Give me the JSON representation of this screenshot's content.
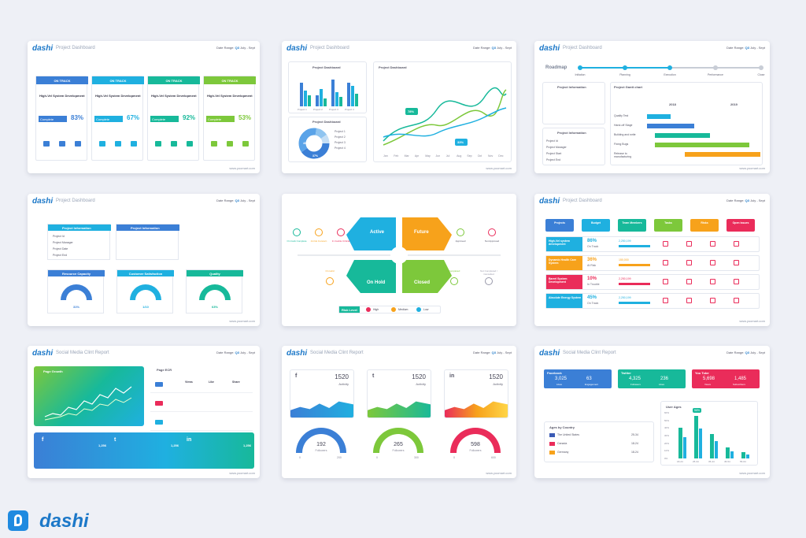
{
  "brand": "dashi",
  "url": "www.yoomart.com",
  "range_label": "Date Range",
  "range_q": "Q3",
  "range_months": "July - Sept",
  "slides": {
    "s1": {
      "title": "Project Dashboard",
      "cols": [
        {
          "status": "ON TRACK",
          "head": "High-Vel System Development",
          "pct": "83%",
          "color": "#3b7fd6",
          "lbl": "Complete"
        },
        {
          "status": "ON TRACK",
          "head": "High-Vel System Development",
          "pct": "67%",
          "color": "#1fb0e0",
          "lbl": "Complete"
        },
        {
          "status": "ON TRACK",
          "head": "High-Vel System Development",
          "pct": "92%",
          "color": "#17b99a",
          "lbl": "Complete"
        },
        {
          "status": "ON TRACK",
          "head": "High-Vel System Development",
          "pct": "53%",
          "color": "#7dc83b",
          "lbl": "Complete"
        }
      ]
    },
    "s2": {
      "title": "Project Dashboard",
      "bar_title": "Project Dashboard",
      "legend": [
        "Planned",
        "Actual",
        "Remain"
      ],
      "x": [
        "Project 1",
        "Project 2",
        "Project 3",
        "Project 4"
      ],
      "donut_title": "Project Dashboard",
      "donut_legend": [
        "Project 1",
        "Project 2",
        "Project 3",
        "Project 4"
      ],
      "donut_vals": [
        "40%",
        "37%"
      ],
      "line_title": "Project Dashboard",
      "call1": "78%",
      "call2": "33%",
      "months": [
        "Jan",
        "Feb",
        "Mar",
        "Apr",
        "May",
        "Jun",
        "Jul",
        "Aug",
        "Sep",
        "Oct",
        "Nov",
        "Dec"
      ]
    },
    "s3": {
      "title": "Project Dashboard",
      "roadmap": "Roadmap",
      "steps": [
        "Initiation",
        "Planning",
        "Execution",
        "Performance",
        "Close"
      ],
      "info": "Project Information",
      "gantt": "Project Gantt chart",
      "years": [
        "2018",
        "2019"
      ],
      "rows": [
        "Quality Test",
        "Hand-off Stage",
        "Building and write",
        "Fixing Bugs",
        "Release to manufacturing"
      ],
      "fields": [
        "Project Id",
        "Project Manager",
        "Project Start",
        "Project End"
      ]
    },
    "s4": {
      "title": "Project Dashboard",
      "info": "Project Information",
      "fields": [
        "Project Id",
        "Project Manager",
        "Project Date",
        "Project End"
      ],
      "gauges": [
        "Resource Capacity",
        "Customer Satisfaction",
        "Quality"
      ],
      "gvals": [
        "31%",
        "1/10",
        "63%"
      ]
    },
    "s5": {
      "active": "Active",
      "future": "Future",
      "onhold": "On Hold",
      "closed": "Closed",
      "risk": "Risk Level",
      "levels": [
        "High",
        "Medium",
        "Low"
      ],
      "left": [
        "On track Complete",
        "At risk Concern",
        "In trouble Critical"
      ],
      "right": [
        "Approved",
        "Not Approved"
      ],
      "lower": [
        "On Hold",
        "Completed",
        "Not Completed / Cancelled"
      ]
    },
    "s6": {
      "title": "Project Dashboard",
      "heads": [
        "Projects",
        "Budget",
        "Team Members",
        "Tasks",
        "Risks",
        "Open issues"
      ],
      "head_colors": [
        "#3b7fd6",
        "#1fb0e0",
        "#17b99a",
        "#7dc83b",
        "#f7a21b",
        "#ea2c5a"
      ],
      "rows": [
        {
          "name": "High-Vel system development",
          "pct": "86%",
          "st": "On Track",
          "val": "2,250,199",
          "c": "#1fb0e0"
        },
        {
          "name": "Dynamic Health Care System",
          "pct": "36%",
          "st": "At Risk",
          "val": "150,000",
          "c": "#f7a21b"
        },
        {
          "name": "Barrel System Development",
          "pct": "10%",
          "st": "In Trouble",
          "val": "2,250,199",
          "c": "#ea2c5a"
        },
        {
          "name": "Absolute Energy System",
          "pct": "45%",
          "st": "On Track",
          "val": "2,250,199",
          "c": "#1fb0e0"
        }
      ]
    },
    "s7": {
      "title": "Social Media Clint Report",
      "growth": "Page Growth",
      "page": "Page ECR",
      "cols": [
        "Views",
        "Like",
        "Share"
      ],
      "socials": [
        "f",
        "t",
        "in"
      ],
      "stats": [
        "1,256",
        "1,256",
        "1,256"
      ]
    },
    "s8": {
      "title": "Social Media Clint Report",
      "cards": [
        {
          "icon": "f",
          "val": "1520",
          "lbl": "Activity"
        },
        {
          "icon": "t",
          "val": "1520",
          "lbl": "Activity"
        },
        {
          "icon": "in",
          "val": "1520",
          "lbl": "Activity"
        }
      ],
      "gauges": [
        {
          "val": "192",
          "lbl": "Followers",
          "min": "0",
          "max": "200"
        },
        {
          "val": "265",
          "lbl": "Followers",
          "min": "0",
          "max": "300"
        },
        {
          "val": "598",
          "lbl": "Followers",
          "min": "0",
          "max": "600"
        }
      ]
    },
    "s9": {
      "title": "Social Media Clint Report",
      "tiles": [
        {
          "name": "Facebook",
          "a": "3,025",
          "al": "Likes",
          "b": "63",
          "bl": "Engagement",
          "c": "#3b7fd6"
        },
        {
          "name": "Twitter",
          "a": "4,325",
          "al": "Followers",
          "b": "236",
          "bl": "Likes",
          "c": "#17b99a"
        },
        {
          "name": "You Tube",
          "a": "5,698",
          "al": "Views",
          "b": "1,485",
          "bl": "Subscribers",
          "c": "#ea2c5a"
        }
      ],
      "ages": "Ages by Country",
      "countries": [
        {
          "n": "The United States",
          "v": "25-34"
        },
        {
          "n": "Canada",
          "v": "18-24"
        },
        {
          "n": "Germany",
          "v": "18-24"
        }
      ],
      "user_ages": "User Ages",
      "age_bins": [
        "18-24",
        "25-34",
        "35-44",
        "45-54",
        "55-64"
      ],
      "age_vals": [
        40,
        56,
        32,
        14,
        8
      ],
      "callout": "56%",
      "yticks": [
        "60%",
        "50%",
        "40%",
        "30%",
        "20%",
        "10%",
        "0%"
      ]
    }
  },
  "logo_text": "dashi"
}
